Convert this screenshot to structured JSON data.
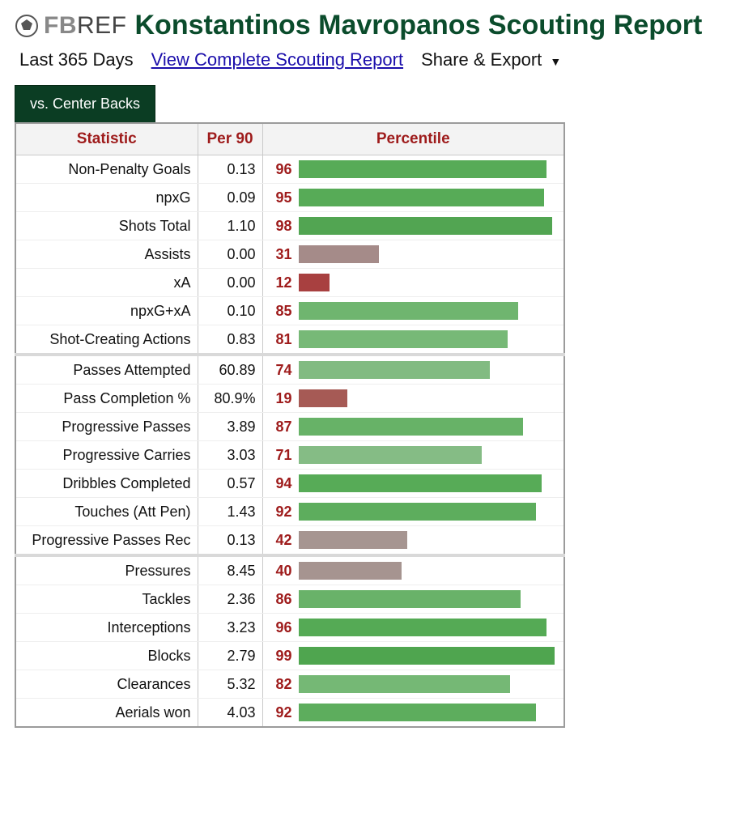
{
  "logo": {
    "fb": "FB",
    "ref": "REF"
  },
  "title": "Konstantinos Mavropanos Scouting Report",
  "subhead": {
    "period": "Last 365 Days",
    "link": "View Complete Scouting Report",
    "share": "Share & Export"
  },
  "tab": "vs. Center Backs",
  "columns": {
    "stat": "Statistic",
    "per90": "Per 90",
    "pct": "Percentile"
  },
  "colors": {
    "header_text": "#9e1b1b",
    "tab_bg": "#0b3d23",
    "title_color": "#0b4c2c",
    "pct_text": "#9e1b1b",
    "border": "#9b9b9b",
    "row_border": "#eeeeee",
    "section_border": "#d9d9d9"
  },
  "bar_max_pct": 100,
  "groups": [
    {
      "rows": [
        {
          "stat": "Non-Penalty Goals",
          "per90": "0.13",
          "pct": 96,
          "bar_color": "#57ab57"
        },
        {
          "stat": "npxG",
          "per90": "0.09",
          "pct": 95,
          "bar_color": "#57ab57"
        },
        {
          "stat": "Shots Total",
          "per90": "1.10",
          "pct": 98,
          "bar_color": "#52a552"
        },
        {
          "stat": "Assists",
          "per90": "0.00",
          "pct": 31,
          "bar_color": "#a58b89"
        },
        {
          "stat": "xA",
          "per90": "0.00",
          "pct": 12,
          "bar_color": "#a84040"
        },
        {
          "stat": "npxG+xA",
          "per90": "0.10",
          "pct": 85,
          "bar_color": "#6fb56f"
        },
        {
          "stat": "Shot-Creating Actions",
          "per90": "0.83",
          "pct": 81,
          "bar_color": "#77b977"
        }
      ]
    },
    {
      "rows": [
        {
          "stat": "Passes Attempted",
          "per90": "60.89",
          "pct": 74,
          "bar_color": "#82bb82"
        },
        {
          "stat": "Pass Completion %",
          "per90": "80.9%",
          "pct": 19,
          "bar_color": "#a65a55"
        },
        {
          "stat": "Progressive Passes",
          "per90": "3.89",
          "pct": 87,
          "bar_color": "#67b267"
        },
        {
          "stat": "Progressive Carries",
          "per90": "3.03",
          "pct": 71,
          "bar_color": "#85bc85"
        },
        {
          "stat": "Dribbles Completed",
          "per90": "0.57",
          "pct": 94,
          "bar_color": "#57ab57"
        },
        {
          "stat": "Touches (Att Pen)",
          "per90": "1.43",
          "pct": 92,
          "bar_color": "#5dad5d"
        },
        {
          "stat": "Progressive Passes Rec",
          "per90": "0.13",
          "pct": 42,
          "bar_color": "#a69591"
        }
      ]
    },
    {
      "rows": [
        {
          "stat": "Pressures",
          "per90": "8.45",
          "pct": 40,
          "bar_color": "#a69490"
        },
        {
          "stat": "Tackles",
          "per90": "2.36",
          "pct": 86,
          "bar_color": "#69b269"
        },
        {
          "stat": "Interceptions",
          "per90": "3.23",
          "pct": 96,
          "bar_color": "#55aa55"
        },
        {
          "stat": "Blocks",
          "per90": "2.79",
          "pct": 99,
          "bar_color": "#4fa54f"
        },
        {
          "stat": "Clearances",
          "per90": "5.32",
          "pct": 82,
          "bar_color": "#75b875"
        },
        {
          "stat": "Aerials won",
          "per90": "4.03",
          "pct": 92,
          "bar_color": "#5dad5d"
        }
      ]
    }
  ]
}
